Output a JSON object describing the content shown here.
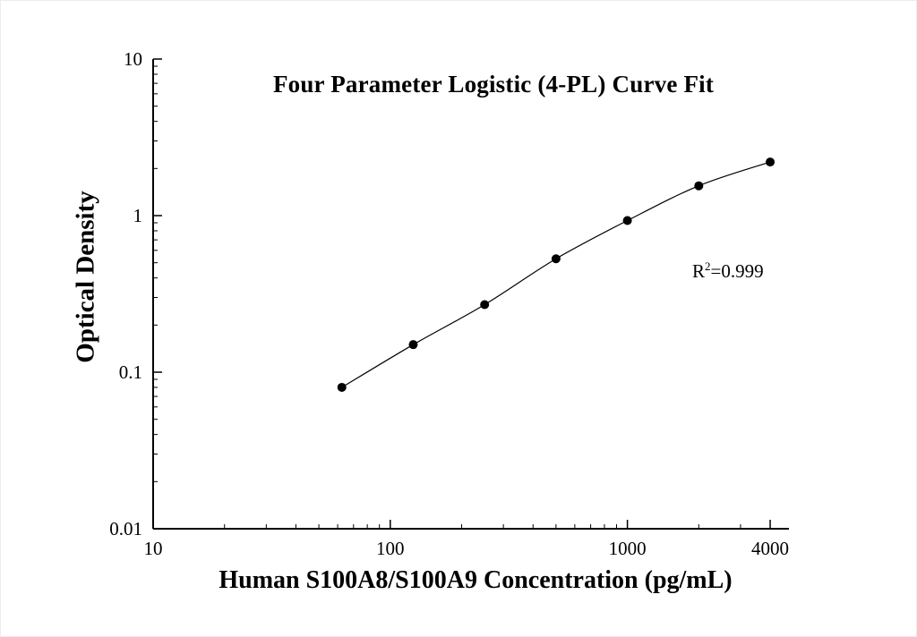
{
  "chart_data": {
    "type": "scatter",
    "title": "Four Parameter Logistic (4-PL) Curve Fit",
    "xlabel": "Human S100A8/S100A9 Concentration (pg/mL)",
    "ylabel": "Optical Density",
    "x_scale": "log",
    "y_scale": "log",
    "x_range": [
      10,
      4800
    ],
    "y_range": [
      0.01,
      10
    ],
    "grid": false,
    "legend": false,
    "x_ticks": [
      {
        "value": 10,
        "label": "10"
      },
      {
        "value": 100,
        "label": "100"
      },
      {
        "value": 1000,
        "label": "1000"
      },
      {
        "value": 4000,
        "label": "4000"
      }
    ],
    "y_ticks": [
      {
        "value": 0.01,
        "label": "0.01"
      },
      {
        "value": 0.1,
        "label": "0.1"
      },
      {
        "value": 1,
        "label": "1"
      },
      {
        "value": 10,
        "label": "10"
      }
    ],
    "series": [
      {
        "name": "standard-curve",
        "marker": "filled-circle",
        "color": "#000000",
        "points": [
          {
            "x": 62.5,
            "y": 0.08
          },
          {
            "x": 125,
            "y": 0.15
          },
          {
            "x": 250,
            "y": 0.27
          },
          {
            "x": 500,
            "y": 0.53
          },
          {
            "x": 1000,
            "y": 0.93
          },
          {
            "x": 2000,
            "y": 1.55
          },
          {
            "x": 4000,
            "y": 2.2
          }
        ]
      }
    ],
    "annotation": {
      "base": "R",
      "sup": "2",
      "rest": "=0.999"
    }
  }
}
